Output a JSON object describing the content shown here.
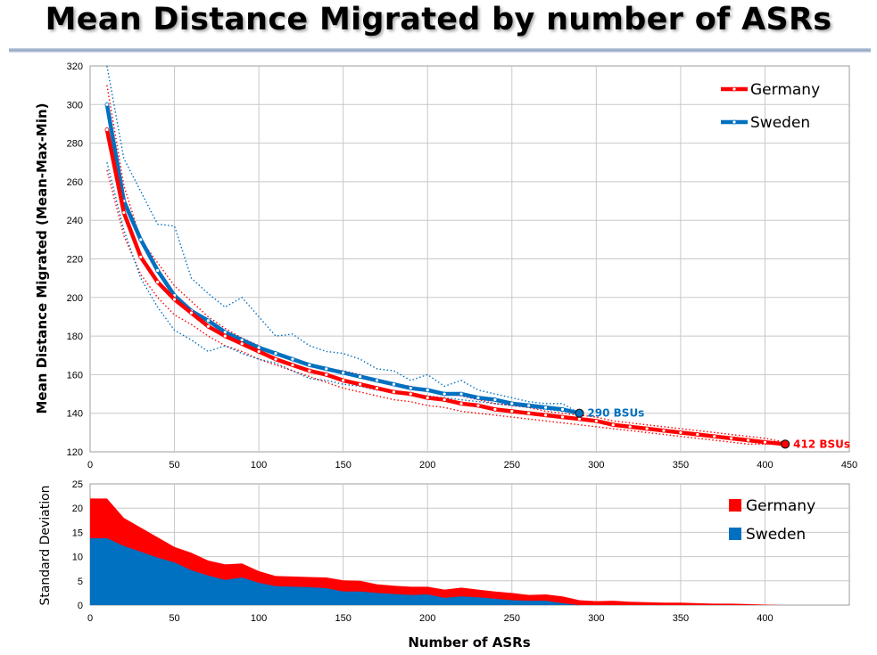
{
  "title": "Mean Distance Migrated by number of ASRs",
  "colors": {
    "germany": "#ff0000",
    "sweden": "#0070c0",
    "germany_area": "#ff0000",
    "sweden_area": "#0070c0"
  },
  "chart_data": [
    {
      "type": "line",
      "xlabel": "",
      "ylabel": "Mean Distance Migrated (Mean-Max-Min)",
      "xlim": [
        0,
        450
      ],
      "ylim": [
        120,
        320
      ],
      "xticks": [
        0,
        50,
        100,
        150,
        200,
        250,
        300,
        350,
        400,
        450
      ],
      "yticks": [
        120,
        140,
        160,
        180,
        200,
        220,
        240,
        260,
        280,
        300,
        320
      ],
      "grid": true,
      "legend": "top-right",
      "series": [
        {
          "name": "Germany",
          "key": "germany",
          "x": [
            10,
            20,
            30,
            40,
            50,
            60,
            70,
            80,
            90,
            100,
            110,
            120,
            130,
            140,
            150,
            160,
            170,
            180,
            190,
            200,
            210,
            220,
            230,
            240,
            250,
            260,
            270,
            280,
            290,
            300,
            310,
            320,
            330,
            340,
            350,
            360,
            370,
            380,
            390,
            400,
            412
          ],
          "mean": [
            287,
            244,
            221,
            208,
            199,
            192,
            185,
            180,
            176,
            172,
            168,
            165,
            162,
            160,
            157,
            155,
            153,
            151,
            150,
            148,
            147,
            145,
            144,
            142,
            141,
            140,
            139,
            138,
            137,
            136,
            134,
            133,
            132,
            131,
            130,
            129,
            128,
            127,
            126,
            125,
            124
          ],
          "max": [
            310,
            258,
            230,
            218,
            206,
            198,
            190,
            184,
            179,
            175,
            171,
            168,
            165,
            163,
            162,
            160,
            157,
            155,
            154,
            152,
            150,
            149,
            147,
            145,
            144,
            143,
            141,
            140,
            139,
            138,
            136,
            135,
            134,
            133,
            132,
            131,
            130,
            129,
            128,
            127,
            125
          ],
          "min": [
            266,
            232,
            212,
            200,
            191,
            186,
            180,
            175,
            172,
            168,
            165,
            162,
            159,
            156,
            153,
            151,
            149,
            147,
            146,
            144,
            143,
            141,
            140,
            139,
            138,
            137,
            136,
            135,
            134,
            133,
            132,
            131,
            130,
            129,
            128,
            127,
            126,
            125,
            124,
            124,
            124
          ]
        },
        {
          "name": "Sweden",
          "key": "sweden",
          "x": [
            10,
            20,
            30,
            40,
            50,
            60,
            70,
            80,
            90,
            100,
            110,
            120,
            130,
            140,
            150,
            160,
            170,
            180,
            190,
            200,
            210,
            220,
            230,
            240,
            250,
            260,
            270,
            280,
            290
          ],
          "mean": [
            300,
            250,
            230,
            214,
            201,
            193,
            188,
            182,
            178,
            174,
            171,
            168,
            165,
            163,
            161,
            159,
            157,
            155,
            153,
            152,
            150,
            150,
            148,
            147,
            145,
            144,
            143,
            142,
            140
          ],
          "max": [
            320,
            272,
            255,
            238,
            237,
            210,
            202,
            195,
            200,
            190,
            180,
            181,
            175,
            172,
            171,
            168,
            163,
            162,
            157,
            160,
            154,
            157,
            152,
            150,
            148,
            146,
            145,
            145,
            140
          ],
          "min": [
            270,
            235,
            210,
            195,
            183,
            178,
            172,
            175,
            171,
            168,
            166,
            162,
            158,
            157,
            155,
            154,
            152,
            151,
            150,
            149,
            148,
            147,
            146,
            145,
            144,
            143,
            142,
            141,
            140
          ]
        }
      ],
      "annotations": [
        {
          "text": "290 BSUs",
          "series": "sweden",
          "x": 290,
          "y": 140
        },
        {
          "text": "412 BSUs",
          "series": "germany",
          "x": 412,
          "y": 124
        }
      ]
    },
    {
      "type": "area",
      "xlabel": "Number of ASRs",
      "ylabel": "Standard Deviation",
      "xlim": [
        0,
        450
      ],
      "ylim": [
        0,
        25
      ],
      "xticks": [
        0,
        50,
        100,
        150,
        200,
        250,
        300,
        350,
        400
      ],
      "yticks": [
        0,
        5,
        10,
        15,
        20,
        25
      ],
      "grid": true,
      "legend": "top-right",
      "series": [
        {
          "name": "Germany",
          "key": "germany",
          "x": [
            0,
            10,
            20,
            30,
            40,
            50,
            60,
            70,
            80,
            90,
            100,
            110,
            120,
            130,
            140,
            150,
            160,
            170,
            180,
            190,
            200,
            210,
            220,
            230,
            240,
            250,
            260,
            270,
            280,
            290,
            300,
            310,
            320,
            330,
            340,
            350,
            360,
            370,
            380,
            390,
            400,
            410
          ],
          "values": [
            22,
            22,
            18,
            16,
            14,
            12,
            10.8,
            9.2,
            8.4,
            8.6,
            7,
            6,
            5.9,
            5.8,
            5.7,
            5.1,
            5,
            4.3,
            4,
            3.8,
            3.8,
            3.2,
            3.6,
            3.2,
            2.8,
            2.5,
            2.1,
            2.2,
            1.8,
            1,
            0.8,
            0.9,
            0.7,
            0.6,
            0.5,
            0.5,
            0.4,
            0.3,
            0.3,
            0.2,
            0.1,
            0
          ]
        },
        {
          "name": "Sweden",
          "key": "sweden",
          "x": [
            0,
            10,
            20,
            30,
            40,
            50,
            60,
            70,
            80,
            90,
            100,
            110,
            120,
            130,
            140,
            150,
            160,
            170,
            180,
            190,
            200,
            210,
            220,
            230,
            240,
            250,
            260,
            270,
            280,
            290
          ],
          "values": [
            13.8,
            13.8,
            12.2,
            11,
            9.8,
            8.8,
            7.2,
            6.1,
            5.2,
            5.7,
            4.6,
            3.9,
            3.8,
            3.7,
            3.5,
            2.8,
            2.8,
            2.5,
            2.3,
            2.1,
            2.2,
            1.5,
            1.8,
            1.6,
            1.3,
            1,
            0.9,
            0.9,
            0.4,
            0
          ]
        }
      ]
    }
  ]
}
